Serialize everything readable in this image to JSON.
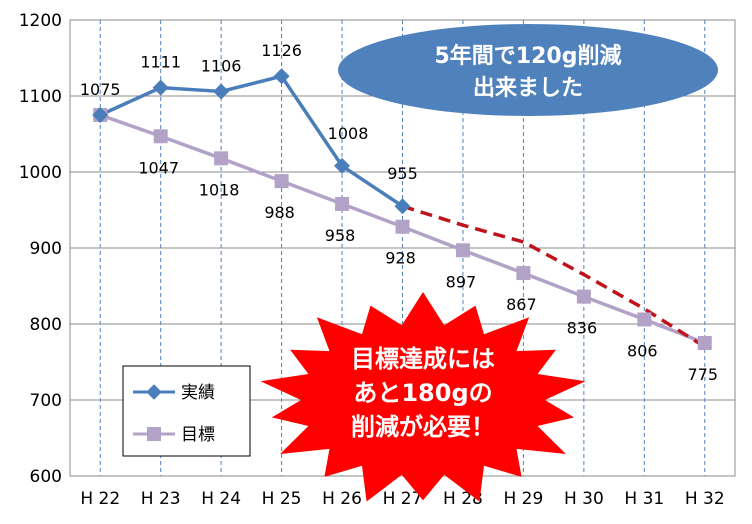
{
  "chart_data": {
    "type": "line",
    "categories": [
      "H 22",
      "H 23",
      "H 24",
      "H 25",
      "H 26",
      "H 27",
      "H 28",
      "H 29",
      "H 30",
      "H 31",
      "H 32"
    ],
    "ylim": [
      600,
      1200
    ],
    "yticks": [
      600,
      700,
      800,
      900,
      1000,
      1100,
      1200
    ],
    "grid": "vertical dashed",
    "legend_position": "bottom-left",
    "series": [
      {
        "name": "実績",
        "values": [
          1075,
          1111,
          1106,
          1126,
          1008,
          955,
          null,
          null,
          null,
          null,
          null
        ],
        "color": "#4a7ebb",
        "marker": "diamond"
      },
      {
        "name": "目標",
        "values": [
          1075,
          1047,
          1018,
          988,
          958,
          928,
          897,
          867,
          836,
          806,
          775
        ],
        "color": "#b3a2c7",
        "marker": "square"
      },
      {
        "name": "",
        "values": [
          null,
          null,
          null,
          null,
          null,
          955,
          930,
          908,
          865,
          820,
          770
        ],
        "color": "#c0141c",
        "style": "dashed"
      }
    ],
    "data_labels": {
      "actual": [
        "1075",
        "1111",
        "1106",
        "1126",
        "1008",
        "955"
      ],
      "target": [
        "1047",
        "1018",
        "988",
        "958",
        "928",
        "897",
        "867",
        "836",
        "806",
        "775"
      ]
    },
    "annotations": {
      "ellipse_line1": "5年間で120g削減",
      "ellipse_line2": "出来ました",
      "burst_line1": "目標達成には",
      "burst_line2": "あと180gの",
      "burst_line3": "削減が必要！"
    }
  },
  "colors": {
    "ellipse_fill": "#4f81bd",
    "burst_fill": "#ff0000",
    "grid": "#4f81bd"
  }
}
